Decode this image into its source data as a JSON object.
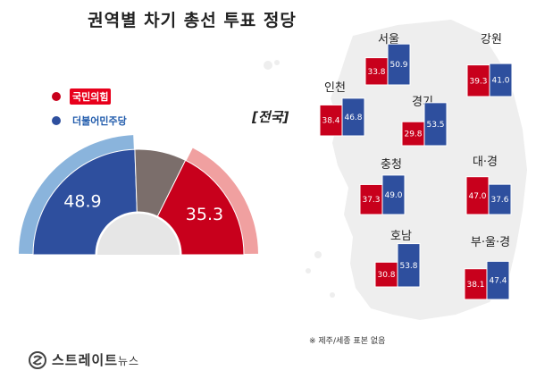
{
  "title": "권역별 차기 총선 투표 정당",
  "scope_label": "[전국]",
  "note": "※ 제주/세종 표본 없음",
  "brand": {
    "name": "스트레이트",
    "suffix": "뉴스"
  },
  "parties": [
    {
      "name": "국민의힘",
      "color": "#e8001c"
    },
    {
      "name": "더불어민주당",
      "color": "#1f5aab"
    }
  ],
  "colors": {
    "ppp": "#c8001c",
    "dp": "#2e4f9e",
    "other": "#7b6e6b",
    "ppp_light": "#f0a0a0",
    "dp_light": "#8ab4dc"
  },
  "chart_data": [
    {
      "type": "pie",
      "scope": "전국",
      "slices": [
        {
          "party": "더불어민주당",
          "value": 48.9
        },
        {
          "party": "기타",
          "value": 15.8
        },
        {
          "party": "국민의힘",
          "value": 35.3
        }
      ]
    },
    {
      "type": "bar",
      "categories": [
        "서울",
        "인천",
        "경기",
        "강원",
        "충청",
        "대·경",
        "호남",
        "부·울·경"
      ],
      "series": [
        {
          "name": "국민의힘",
          "values": [
            33.8,
            38.4,
            29.8,
            39.3,
            37.3,
            47.0,
            30.8,
            38.1
          ]
        },
        {
          "name": "더불어민주당",
          "values": [
            50.9,
            46.8,
            53.5,
            41.0,
            49.0,
            37.6,
            53.8,
            47.4
          ]
        }
      ]
    }
  ]
}
